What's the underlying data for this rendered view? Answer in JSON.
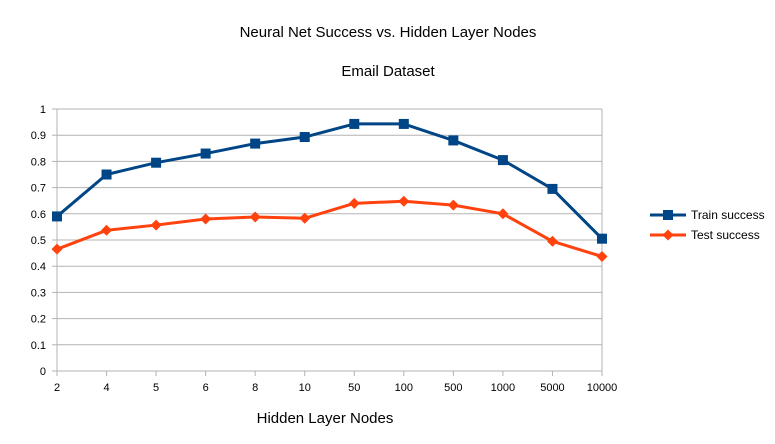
{
  "chart_data": {
    "type": "line",
    "title": "Neural Net Success vs. Hidden Layer Nodes",
    "subtitle": "Email Dataset",
    "xlabel": "Hidden Layer Nodes",
    "ylabel": "",
    "categories": [
      "2",
      "4",
      "5",
      "6",
      "8",
      "10",
      "50",
      "100",
      "500",
      "1000",
      "5000",
      "10000"
    ],
    "ylim": [
      0,
      1
    ],
    "yticks": [
      "0",
      "0.1",
      "0.2",
      "0.3",
      "0.4",
      "0.5",
      "0.6",
      "0.7",
      "0.8",
      "0.9",
      "1"
    ],
    "grid": true,
    "legend_position": "right",
    "series": [
      {
        "name": "Train success",
        "color": "#004586",
        "marker": "square",
        "values": [
          0.59,
          0.75,
          0.795,
          0.83,
          0.868,
          0.893,
          0.943,
          0.943,
          0.88,
          0.805,
          0.695,
          0.505
        ]
      },
      {
        "name": "Test success",
        "color": "#ff420e",
        "marker": "diamond",
        "values": [
          0.465,
          0.537,
          0.557,
          0.58,
          0.588,
          0.583,
          0.64,
          0.648,
          0.633,
          0.6,
          0.495,
          0.437
        ]
      }
    ]
  }
}
